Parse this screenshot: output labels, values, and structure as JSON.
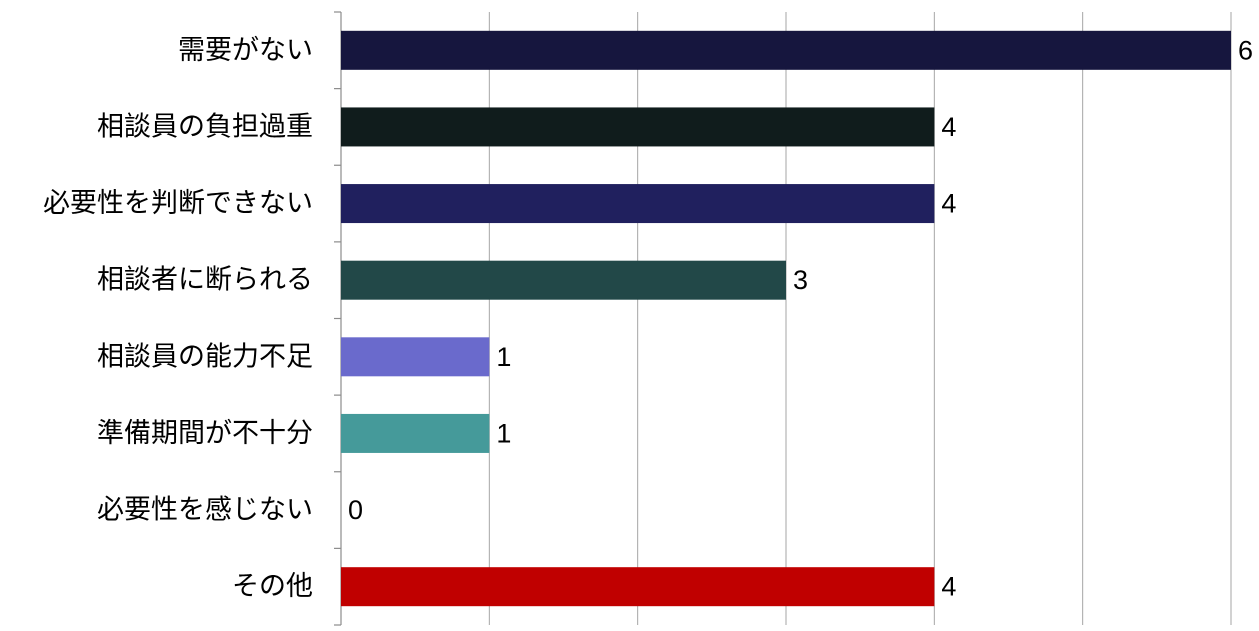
{
  "chart_data": {
    "type": "bar",
    "orientation": "horizontal",
    "categories": [
      "需要がない",
      "相談員の負担過重",
      "必要性を判断できない",
      "相談者に断られる",
      "相談員の能力不足",
      "準備期間が不十分",
      "必要性を感じない",
      "その他"
    ],
    "values": [
      6,
      4,
      4,
      3,
      1,
      1,
      0,
      4
    ],
    "colors": [
      "#16163e",
      "#101c1c",
      "#20205e",
      "#224848",
      "#6a6acc",
      "#459a9a",
      "#9999cc",
      "#c00000"
    ],
    "data_labels": [
      "6",
      "4",
      "4",
      "3",
      "1",
      "1",
      "0",
      "4"
    ],
    "xlim": [
      0,
      6
    ],
    "x_gridlines": true,
    "gridline_step": 1,
    "legend": false,
    "title": "",
    "xlabel": "",
    "ylabel": ""
  }
}
